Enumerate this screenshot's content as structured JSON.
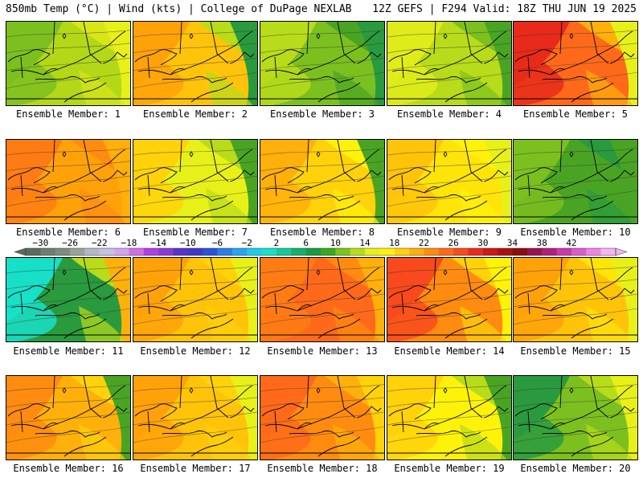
{
  "header": {
    "left_title": "850mb Temp (°C) | Wind (kts) | College of DuPage NEXLAB",
    "right_title": "12Z GEFS | F294 Valid: 18Z THU JUN 19 2025"
  },
  "colorbar": {
    "labels": [
      "−30",
      "−26",
      "−22",
      "−18",
      "−14",
      "−10",
      "−6",
      "−2",
      "2",
      "6",
      "10",
      "14",
      "18",
      "22",
      "26",
      "30",
      "34",
      "38",
      "42"
    ],
    "colors": [
      "#5a6b5e",
      "#6f7d6f",
      "#808a80",
      "#9aa29a",
      "#b2b8c6",
      "#c8c0e4",
      "#d2a3ee",
      "#d070e8",
      "#b040e0",
      "#8a3ad6",
      "#5b33c7",
      "#3f37c9",
      "#2a52d8",
      "#2a7de6",
      "#25a6ee",
      "#1ecbe9",
      "#18e0c8",
      "#17c89a",
      "#16b06c",
      "#1a9a3e",
      "#39a81e",
      "#7ac41c",
      "#b8dc1a",
      "#e8f01a",
      "#fff20a",
      "#ffd20a",
      "#ffb00a",
      "#ff8c10",
      "#ff6a1a",
      "#f84a1c",
      "#e82a1a",
      "#cc1818",
      "#aa1212",
      "#8a0c0c",
      "#9a1050",
      "#b0207a",
      "#c83aa8",
      "#dc5ccc",
      "#ec86e2",
      "#f4b6f0"
    ]
  },
  "members": [
    {
      "label": "Ensemble Member: 1",
      "colors": [
        "#7cc020",
        "#b2d818",
        "#d8e618",
        "#e8f01a"
      ]
    },
    {
      "label": "Ensemble Member: 2",
      "colors": [
        "#ffa20a",
        "#ffc40a",
        "#b8dc1a",
        "#2a9a3e"
      ]
    },
    {
      "label": "Ensemble Member: 3",
      "colors": [
        "#b8dc1a",
        "#7cc020",
        "#4aa424",
        "#2a9a3e"
      ]
    },
    {
      "label": "Ensemble Member: 4",
      "colors": [
        "#e0ec1a",
        "#b8dc1a",
        "#7cc020",
        "#4aa424"
      ]
    },
    {
      "label": "Ensemble Member: 5",
      "colors": [
        "#e82a1a",
        "#ff6a1a",
        "#ffb00a",
        "#e8f01a"
      ]
    },
    {
      "label": "Ensemble Member: 6",
      "colors": [
        "#ff7c14",
        "#ffa20a",
        "#ff8c10",
        "#ffb00a"
      ]
    },
    {
      "label": "Ensemble Member: 7",
      "colors": [
        "#ffd20a",
        "#e8f01a",
        "#b8dc1a",
        "#4aa424"
      ]
    },
    {
      "label": "Ensemble Member: 8",
      "colors": [
        "#ffb00a",
        "#ffd20a",
        "#fff20a",
        "#4aa424"
      ]
    },
    {
      "label": "Ensemble Member: 9",
      "colors": [
        "#ffc40a",
        "#ffe40a",
        "#fff20a",
        "#e8f01a"
      ]
    },
    {
      "label": "Ensemble Member: 10",
      "colors": [
        "#7cc020",
        "#4aa424",
        "#2a9a3e",
        "#4aa424"
      ]
    },
    {
      "label": "Ensemble Member: 11",
      "colors": [
        "#18e0c8",
        "#2a9a3e",
        "#b8dc1a",
        "#ffb00a"
      ]
    },
    {
      "label": "Ensemble Member: 12",
      "colors": [
        "#ffa20a",
        "#ffc40a",
        "#ffd20a",
        "#e8f01a"
      ]
    },
    {
      "label": "Ensemble Member: 13",
      "colors": [
        "#ff7c14",
        "#ff6a1a",
        "#ff8c10",
        "#ffb00a"
      ]
    },
    {
      "label": "Ensemble Member: 14",
      "colors": [
        "#f84a1c",
        "#ff8c10",
        "#ffd20a",
        "#fff20a"
      ]
    },
    {
      "label": "Ensemble Member: 15",
      "colors": [
        "#ffa20a",
        "#ffc40a",
        "#ffe40a",
        "#e8f01a"
      ]
    },
    {
      "label": "Ensemble Member: 16",
      "colors": [
        "#ff8c10",
        "#ffb00a",
        "#ffd20a",
        "#4aa424"
      ]
    },
    {
      "label": "Ensemble Member: 17",
      "colors": [
        "#ffa20a",
        "#ffc40a",
        "#ffd20a",
        "#e8f01a"
      ]
    },
    {
      "label": "Ensemble Member: 18",
      "colors": [
        "#ff6a1a",
        "#ff8c10",
        "#ffb00a",
        "#ffd20a"
      ]
    },
    {
      "label": "Ensemble Member: 19",
      "colors": [
        "#ffd20a",
        "#fff20a",
        "#b8dc1a",
        "#4aa424"
      ]
    },
    {
      "label": "Ensemble Member: 20",
      "colors": [
        "#2a9a3e",
        "#7cc020",
        "#b8dc1a",
        "#e8f01a"
      ]
    }
  ]
}
